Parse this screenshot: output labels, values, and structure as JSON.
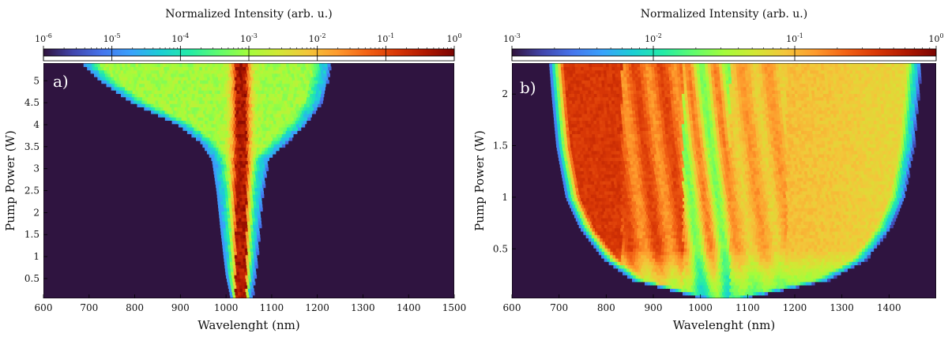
{
  "colormap": [
    "#30123b",
    "#4145ab",
    "#4675ed",
    "#39a2fc",
    "#1bcfd4",
    "#24eca6",
    "#61fc6c",
    "#a4fc3b",
    "#d1e834",
    "#f3c63a",
    "#fe9b2d",
    "#f36315",
    "#d93806",
    "#b11901",
    "#7a0402"
  ],
  "background_color": "#2f1440",
  "chart_data": [
    {
      "type": "heatmap",
      "panel_label": "a)",
      "colorbar": {
        "title": "Normalized Intensity (arb. u.)",
        "scale": "log",
        "range": [
          1e-06,
          1
        ],
        "ticks": [
          {
            "base": "10",
            "exp": "-6"
          },
          {
            "base": "10",
            "exp": "-5"
          },
          {
            "base": "10",
            "exp": "-4"
          },
          {
            "base": "10",
            "exp": "-3"
          },
          {
            "base": "10",
            "exp": "-2"
          },
          {
            "base": "10",
            "exp": "-1"
          },
          {
            "base": "10",
            "exp": "0"
          }
        ]
      },
      "xlabel": "Wavelenght (nm)",
      "ylabel": "Pump Power (W)",
      "xlim": [
        600,
        1500
      ],
      "ylim": [
        0.05,
        5.4
      ],
      "xticks": [
        "600",
        "700",
        "800",
        "900",
        "1000",
        "1100",
        "1200",
        "1300",
        "1400",
        "1500"
      ],
      "yticks": [
        "0.5",
        "1",
        "1.5",
        "2",
        "2.5",
        "3",
        "3.5",
        "4",
        "4.5",
        "5"
      ],
      "center_wavelength": 1030,
      "spectral_edges": [
        {
          "power": 0.1,
          "left": 1015,
          "right": 1045
        },
        {
          "power": 0.6,
          "left": 1005,
          "right": 1052
        },
        {
          "power": 1.5,
          "left": 995,
          "right": 1060
        },
        {
          "power": 2.5,
          "left": 985,
          "right": 1068
        },
        {
          "power": 3.2,
          "left": 975,
          "right": 1080
        },
        {
          "power": 3.6,
          "left": 950,
          "right": 1120
        },
        {
          "power": 4.0,
          "left": 900,
          "right": 1160
        },
        {
          "power": 4.5,
          "left": 800,
          "right": 1195
        },
        {
          "power": 5.0,
          "left": 730,
          "right": 1210
        },
        {
          "power": 5.4,
          "left": 690,
          "right": 1215
        }
      ]
    },
    {
      "type": "heatmap",
      "panel_label": "b)",
      "colorbar": {
        "title": "Normalized Intensity (arb. u.)",
        "scale": "log",
        "range": [
          0.001,
          1
        ],
        "ticks": [
          {
            "base": "10",
            "exp": "-3"
          },
          {
            "base": "10",
            "exp": "-2"
          },
          {
            "base": "10",
            "exp": "-1"
          },
          {
            "base": "10",
            "exp": "0"
          }
        ]
      },
      "xlabel": "Wavelenght (nm)",
      "ylabel": "Pump Power (W)",
      "xlim": [
        600,
        1500
      ],
      "ylim": [
        0.02,
        2.3
      ],
      "xticks": [
        "600",
        "700",
        "800",
        "900",
        "1000",
        "1100",
        "1200",
        "1300",
        "1400"
      ],
      "yticks": [
        "0.5",
        "1",
        "1.5",
        "2"
      ],
      "center_wavelength": 1040,
      "spectral_edges": [
        {
          "power": 0.03,
          "left": 1000,
          "right": 1090
        },
        {
          "power": 0.2,
          "left": 860,
          "right": 1260
        },
        {
          "power": 0.4,
          "left": 800,
          "right": 1340
        },
        {
          "power": 0.7,
          "left": 750,
          "right": 1390
        },
        {
          "power": 1.0,
          "left": 720,
          "right": 1420
        },
        {
          "power": 1.5,
          "left": 700,
          "right": 1440
        },
        {
          "power": 2.0,
          "left": 690,
          "right": 1450
        },
        {
          "power": 2.3,
          "left": 685,
          "right": 1455
        }
      ]
    }
  ]
}
